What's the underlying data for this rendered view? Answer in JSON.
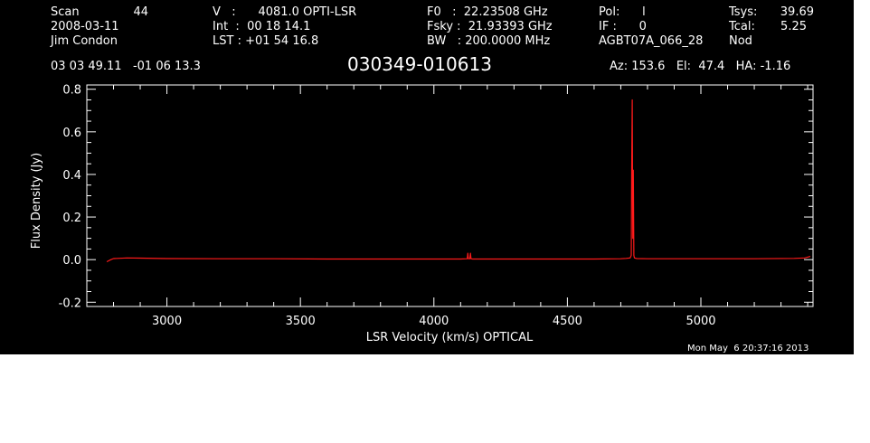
{
  "header": {
    "col1": {
      "scan_label": "Scan",
      "scan_value": "44",
      "date": "2008-03-11",
      "observer": "Jim Condon"
    },
    "col2": {
      "v_line": "V   :      4081.0 OPTI-LSR",
      "int_line": "Int  :  00 18 14.1",
      "lst_line": "LST : +01 54 16.8"
    },
    "col3": {
      "f0_line": "F0   :  22.23508 GHz",
      "fsky_line": "Fsky :  21.93393 GHz",
      "bw_line": "BW   : 200.0000 MHz"
    },
    "col4": {
      "pol_line": "Pol:      l",
      "if_line": "IF :      0",
      "proj_line": "AGBT07A_066_28"
    },
    "col5": {
      "tsys_label": "Tsys:",
      "tsys_value": "39.69",
      "tcal_label": "Tcal:",
      "tcal_value": "5.25",
      "mode": "Nod"
    },
    "coords": "03 03 49.11   -01 06 13.3",
    "source": "030349-010613",
    "az_el_ha": "Az: 153.6   El:  47.4   HA: -1.16",
    "timestamp": "Mon May  6 20:37:16 2013"
  },
  "colors": {
    "background": "#000000",
    "axes": "#ffffff",
    "trace": "#ff1a1a"
  },
  "chart_data": {
    "type": "line",
    "title": "",
    "xlabel": "LSR Velocity (km/s) OPTICAL",
    "ylabel": "Flux Density (Jy)",
    "xlim": [
      2700,
      5420
    ],
    "ylim": [
      -0.22,
      0.82
    ],
    "x_ticks": [
      3000,
      3500,
      4000,
      4500,
      5000
    ],
    "x_tick_labels": [
      "3000",
      "3500",
      "4000",
      "4500",
      "5000"
    ],
    "y_ticks": [
      -0.2,
      0.0,
      0.2,
      0.4,
      0.6,
      0.8
    ],
    "y_tick_labels": [
      "-0.2",
      "0.0",
      "0.2",
      "0.4",
      "0.6",
      "0.8"
    ],
    "grid": false,
    "series": [
      {
        "x": [
          2775,
          2790,
          2800,
          2850,
          2900,
          3000,
          3200,
          3400,
          3600,
          3800,
          4000,
          4100,
          4125,
          4127,
          4129,
          4135,
          4137,
          4139,
          4145,
          4200,
          4400,
          4600,
          4700,
          4720,
          4735,
          4739,
          4741,
          4743,
          4745,
          4747,
          4749,
          4751,
          4760,
          4800,
          5000,
          5200,
          5350,
          5390,
          5410
        ],
        "y": [
          -0.01,
          0.0,
          0.005,
          0.008,
          0.007,
          0.005,
          0.004,
          0.004,
          0.003,
          0.003,
          0.003,
          0.003,
          0.004,
          0.03,
          0.004,
          0.004,
          0.03,
          0.004,
          0.003,
          0.003,
          0.003,
          0.003,
          0.004,
          0.006,
          0.008,
          0.02,
          0.43,
          0.75,
          0.1,
          0.42,
          0.02,
          0.008,
          0.005,
          0.004,
          0.004,
          0.004,
          0.006,
          0.008,
          0.015
        ]
      }
    ]
  }
}
